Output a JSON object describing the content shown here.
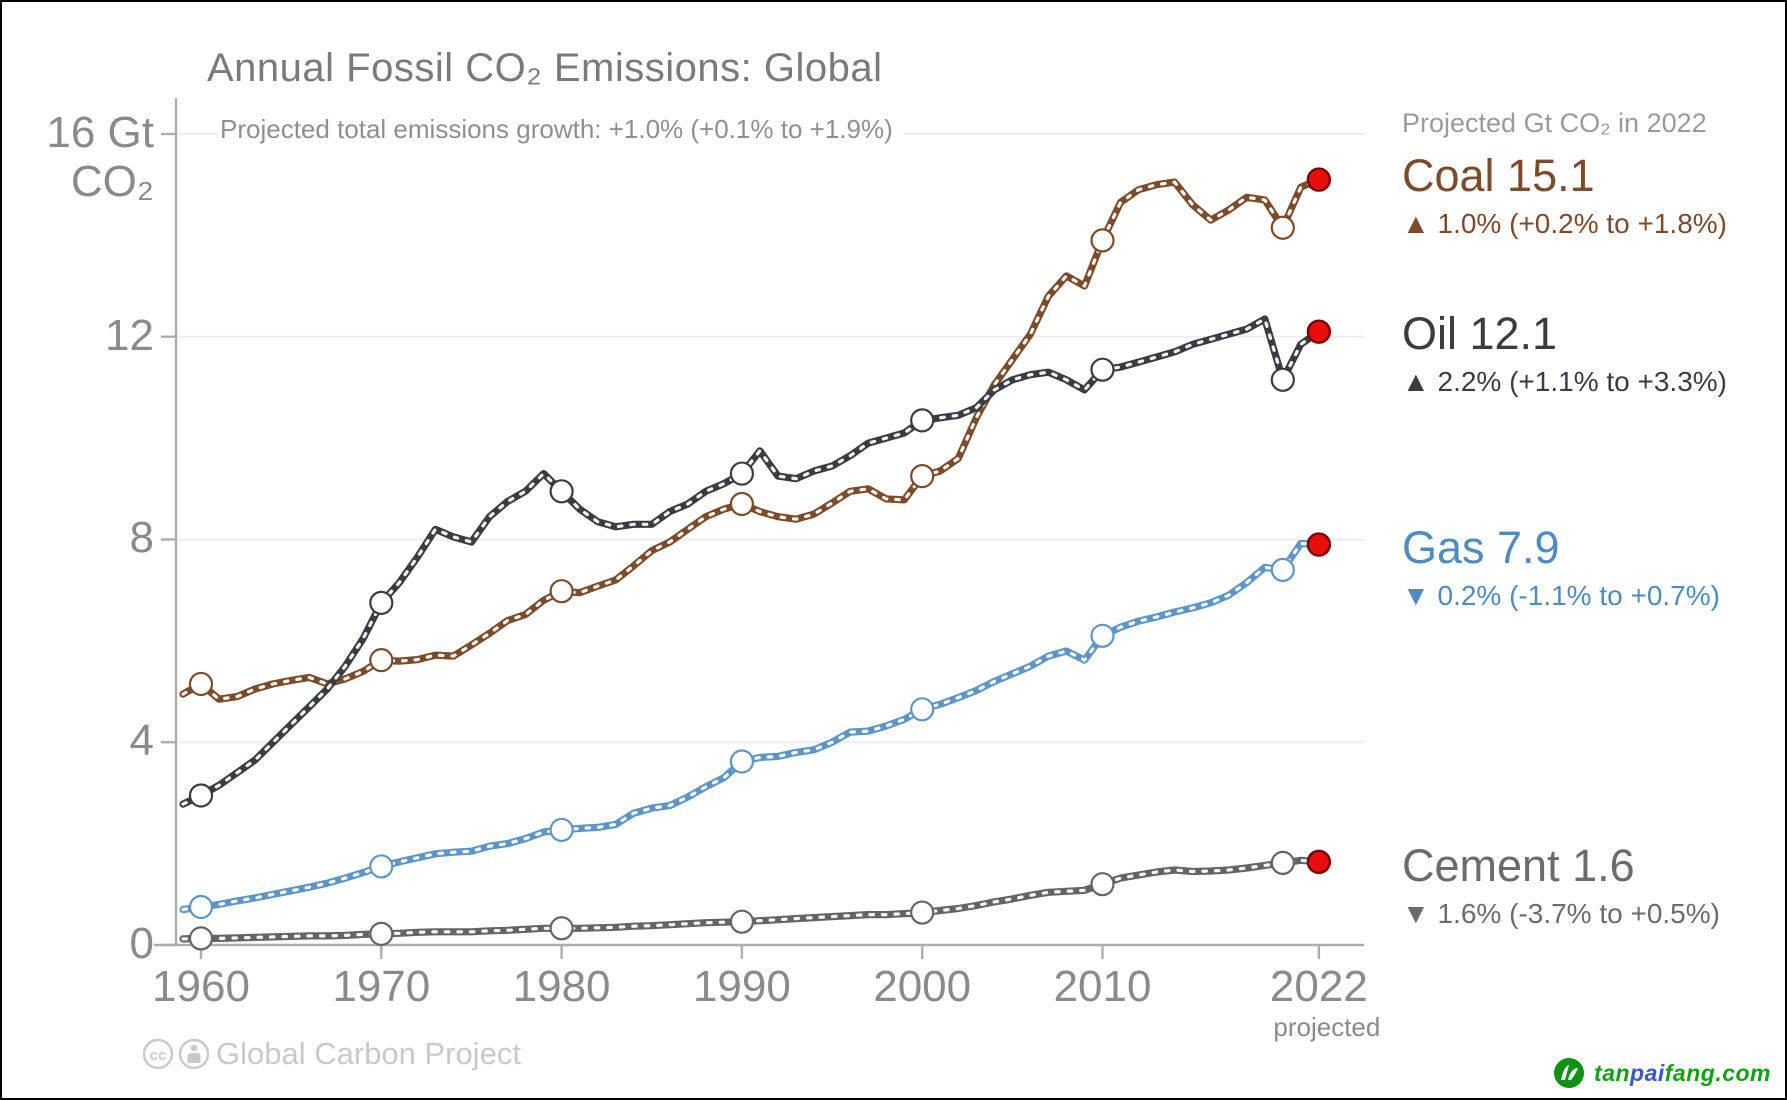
{
  "header": {
    "title": "Annual Fossil CO₂ Emissions: Global",
    "subtitle": "Projected total emissions growth: +1.0% (+0.1% to +1.9%)"
  },
  "y_axis": {
    "top_label_line1": "16 Gt",
    "top_label_line2": "CO₂",
    "ticks": [
      0,
      4,
      8,
      12
    ]
  },
  "x_axis": {
    "tick_years": [
      1960,
      1970,
      1980,
      1990,
      2000,
      2010,
      2022
    ],
    "last_tick_note": "projected"
  },
  "legend": {
    "header": "Projected Gt CO₂ in 2022"
  },
  "footer": {
    "credit": "Global Carbon Project"
  },
  "watermark": {
    "logo": "tanpaifang-logo",
    "parts": [
      {
        "text": "tan",
        "color": "#14a013"
      },
      {
        "text": "pai",
        "color": "#3c57cc"
      },
      {
        "text": "fang.com",
        "color": "#14a013"
      }
    ]
  },
  "chart_data": {
    "type": "line",
    "title": "Annual Fossil CO₂ Emissions: Global",
    "subtitle": "Projected total emissions growth: +1.0% (+0.1% to +1.9%)",
    "ylabel": "Gt CO₂",
    "ylim": [
      0,
      16
    ],
    "grid": "horizontal",
    "legend_position": "right",
    "grid_color": "#ededed",
    "axis_color": "#adadad",
    "projected_dot_color": "#e90d0d",
    "marker_years": [
      1960,
      1970,
      1980,
      1990,
      2000,
      2010,
      2020
    ],
    "projected_year": 2022,
    "x": [
      1959,
      1960,
      1961,
      1962,
      1963,
      1964,
      1965,
      1966,
      1967,
      1968,
      1969,
      1970,
      1971,
      1972,
      1973,
      1974,
      1975,
      1976,
      1977,
      1978,
      1979,
      1980,
      1981,
      1982,
      1983,
      1984,
      1985,
      1986,
      1987,
      1988,
      1989,
      1990,
      1991,
      1992,
      1993,
      1994,
      1995,
      1996,
      1997,
      1998,
      1999,
      2000,
      2001,
      2002,
      2003,
      2004,
      2005,
      2006,
      2007,
      2008,
      2009,
      2010,
      2011,
      2012,
      2013,
      2014,
      2015,
      2016,
      2017,
      2018,
      2019,
      2020,
      2021,
      2022
    ],
    "series": [
      {
        "name": "Coal",
        "legend_label": "Coal 15.1",
        "legend_sub": "▲ 1.0% (+0.2% to +1.8%)",
        "value_2022": 15.1,
        "color": "#7b4b2a",
        "values": [
          4.95,
          5.15,
          4.85,
          4.9,
          5.05,
          5.15,
          5.22,
          5.28,
          5.15,
          5.25,
          5.4,
          5.62,
          5.6,
          5.63,
          5.72,
          5.7,
          5.92,
          6.15,
          6.4,
          6.52,
          6.8,
          6.98,
          6.95,
          7.08,
          7.2,
          7.48,
          7.78,
          7.95,
          8.2,
          8.45,
          8.6,
          8.7,
          8.55,
          8.45,
          8.4,
          8.5,
          8.72,
          8.95,
          9.0,
          8.8,
          8.78,
          9.25,
          9.35,
          9.6,
          10.4,
          11.05,
          11.55,
          12.05,
          12.8,
          13.2,
          13.0,
          13.9,
          14.65,
          14.9,
          15.0,
          15.05,
          14.6,
          14.3,
          14.5,
          14.75,
          14.7,
          14.15,
          14.95,
          15.1
        ]
      },
      {
        "name": "Oil",
        "legend_label": "Oil 12.1",
        "legend_sub": "▲ 2.2% (+1.1% to +3.3%)",
        "value_2022": 12.1,
        "color": "#3a3d40",
        "values": [
          2.78,
          2.95,
          3.15,
          3.4,
          3.65,
          4.0,
          4.35,
          4.7,
          5.05,
          5.5,
          6.05,
          6.75,
          7.15,
          7.65,
          8.2,
          8.05,
          7.95,
          8.45,
          8.75,
          8.95,
          9.3,
          8.95,
          8.6,
          8.35,
          8.25,
          8.3,
          8.3,
          8.55,
          8.7,
          8.95,
          9.1,
          9.3,
          9.75,
          9.25,
          9.2,
          9.35,
          9.45,
          9.65,
          9.9,
          10.0,
          10.1,
          10.35,
          10.4,
          10.45,
          10.6,
          10.95,
          11.15,
          11.25,
          11.3,
          11.15,
          10.95,
          11.35,
          11.4,
          11.5,
          11.6,
          11.7,
          11.85,
          11.95,
          12.05,
          12.15,
          12.35,
          11.15,
          11.85,
          12.1
        ]
      },
      {
        "name": "Gas",
        "legend_label": "Gas 7.9",
        "legend_sub": "▼ 0.2% (-1.1% to +0.7%)",
        "value_2022": 7.9,
        "color": "#5d95c9",
        "values": [
          0.7,
          0.75,
          0.8,
          0.87,
          0.93,
          1.0,
          1.07,
          1.14,
          1.22,
          1.32,
          1.43,
          1.55,
          1.64,
          1.72,
          1.8,
          1.83,
          1.85,
          1.95,
          2.0,
          2.1,
          2.23,
          2.27,
          2.3,
          2.32,
          2.38,
          2.6,
          2.7,
          2.75,
          2.92,
          3.12,
          3.3,
          3.62,
          3.7,
          3.72,
          3.8,
          3.85,
          4.0,
          4.2,
          4.22,
          4.32,
          4.45,
          4.65,
          4.75,
          4.88,
          5.02,
          5.2,
          5.35,
          5.5,
          5.7,
          5.8,
          5.62,
          6.1,
          6.27,
          6.39,
          6.47,
          6.57,
          6.65,
          6.75,
          6.9,
          7.15,
          7.45,
          7.4,
          7.92,
          7.9
        ]
      },
      {
        "name": "Cement",
        "legend_label": "Cement 1.6",
        "legend_sub": "▼ 1.6% (-3.7% to +0.5%)",
        "value_2022": 1.6,
        "color": "#646464",
        "values": [
          0.12,
          0.13,
          0.13,
          0.14,
          0.15,
          0.16,
          0.17,
          0.18,
          0.18,
          0.19,
          0.21,
          0.22,
          0.23,
          0.25,
          0.26,
          0.26,
          0.26,
          0.28,
          0.29,
          0.31,
          0.33,
          0.33,
          0.33,
          0.34,
          0.35,
          0.37,
          0.38,
          0.4,
          0.42,
          0.44,
          0.45,
          0.46,
          0.48,
          0.5,
          0.52,
          0.54,
          0.56,
          0.58,
          0.6,
          0.6,
          0.62,
          0.64,
          0.68,
          0.72,
          0.78,
          0.85,
          0.91,
          0.98,
          1.04,
          1.06,
          1.08,
          1.2,
          1.32,
          1.38,
          1.44,
          1.48,
          1.45,
          1.46,
          1.48,
          1.52,
          1.57,
          1.62,
          1.67,
          1.64
        ]
      }
    ]
  }
}
